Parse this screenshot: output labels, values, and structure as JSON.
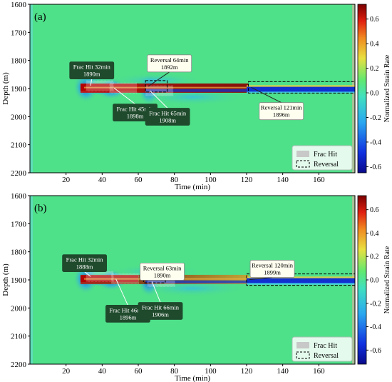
{
  "chart_data": [
    {
      "type": "heatmap",
      "panel_label": "(a)",
      "xlabel": "Time (min)",
      "ylabel": "Depth (m)",
      "colorbar_label": "Normalized Strain Rate",
      "xlim": [
        0,
        180
      ],
      "ylim": [
        2200,
        1600
      ],
      "x_ticks": [
        20,
        40,
        60,
        80,
        100,
        120,
        140,
        160
      ],
      "y_ticks": [
        1600,
        1700,
        1800,
        1900,
        2000,
        2100,
        2200
      ],
      "colorbar_ticks": [
        "0.6",
        "0.4",
        "0.2",
        "0.0",
        "-0.2",
        "-0.4",
        "-0.6"
      ],
      "colorbar_range": [
        -0.65,
        0.72
      ],
      "annotations": [
        {
          "kind": "frac_hit",
          "text1": "Frac Hit 32min",
          "text2": "1890m",
          "time": 32,
          "depth": 1890
        },
        {
          "kind": "frac_hit",
          "text1": "Frac Hit 45min",
          "text2": "1898m",
          "time": 45,
          "depth": 1898
        },
        {
          "kind": "frac_hit",
          "text1": "Frac Hit 65min",
          "text2": "1908m",
          "time": 65,
          "depth": 1908
        },
        {
          "kind": "reversal",
          "text1": "Reversal 64min",
          "text2": "1892m",
          "time": 64,
          "depth": 1892
        },
        {
          "kind": "reversal",
          "text1": "Reversal 121min",
          "text2": "1896m",
          "time": 121,
          "depth": 1896
        }
      ],
      "legend": [
        {
          "label": "Frac Hit",
          "style": "grey-fill"
        },
        {
          "label": "Reversal",
          "style": "dashed-box"
        }
      ],
      "legend_position": "lower-right",
      "colors": {
        "background": "#4fe08a",
        "positive": "#b40000",
        "negative": "#1030d0"
      }
    },
    {
      "type": "heatmap",
      "panel_label": "(b)",
      "xlabel": "Time (min)",
      "ylabel": "Depth (m)",
      "colorbar_label": "Normalized Strain Rate",
      "xlim": [
        0,
        180
      ],
      "ylim": [
        2200,
        1600
      ],
      "x_ticks": [
        20,
        40,
        60,
        80,
        100,
        120,
        140,
        160
      ],
      "y_ticks": [
        1600,
        1700,
        1800,
        1900,
        2000,
        2100,
        2200
      ],
      "colorbar_ticks": [
        "0.6",
        "0.4",
        "0.2",
        "0.0",
        "-0.2",
        "-0.4",
        "-0.6"
      ],
      "colorbar_range": [
        -0.72,
        0.72
      ],
      "annotations": [
        {
          "kind": "frac_hit",
          "text1": "Frac Hit 32min",
          "text2": "1888m",
          "time": 32,
          "depth": 1888
        },
        {
          "kind": "frac_hit",
          "text1": "Frac Hit 46min",
          "text2": "1896m",
          "time": 46,
          "depth": 1896
        },
        {
          "kind": "frac_hit",
          "text1": "Frac Hit 66min",
          "text2": "1906m",
          "time": 66,
          "depth": 1906
        },
        {
          "kind": "reversal",
          "text1": "Reversal 63min",
          "text2": "1890m",
          "time": 63,
          "depth": 1890
        },
        {
          "kind": "reversal",
          "text1": "Reversal 120min",
          "text2": "1899m",
          "time": 120,
          "depth": 1899
        }
      ],
      "legend": [
        {
          "label": "Frac Hit",
          "style": "grey-fill"
        },
        {
          "label": "Reversal",
          "style": "dashed-box"
        }
      ],
      "legend_position": "lower-right",
      "colors": {
        "background": "#4fe08a",
        "positive": "#b40000",
        "negative": "#1030d0"
      }
    }
  ]
}
